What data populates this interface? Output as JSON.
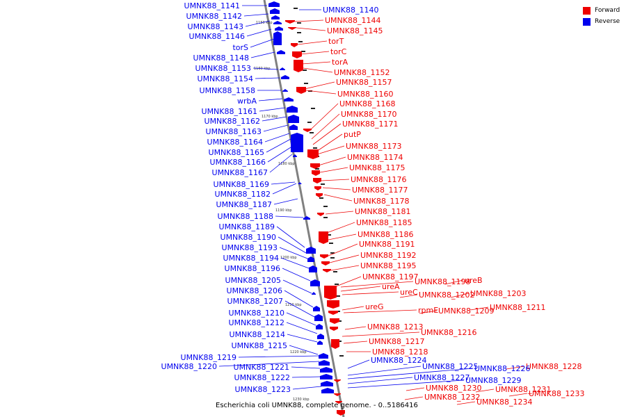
{
  "caption": "Escherichia coli UMNK88, complete genome. - 0..5186416",
  "legend": [
    {
      "label": "Forward",
      "color": "#ee0000"
    },
    {
      "label": "Reverse",
      "color": "#0000ee"
    }
  ],
  "colors": {
    "forward": "#ee0000",
    "reverse": "#0000ee",
    "backbone": "#808080"
  },
  "ticks": [
    "1150 kbp",
    "1160 kbp",
    "1170 kbp",
    "1180 kbp",
    "1190 kbp",
    "1200 kbp",
    "1210 kbp",
    "1220 kbp",
    "1230 kbp"
  ],
  "reverse_labels": [
    "UMNK88_1141",
    "UMNK88_1142",
    "UMNK88_1143",
    "UMNK88_1146",
    "torS",
    "UMNK88_1148",
    "UMNK88_1153",
    "UMNK88_1154",
    "UMNK88_1158",
    "wrbA",
    "UMNK88_1161",
    "UMNK88_1162",
    "UMNK88_1163",
    "UMNK88_1164",
    "UMNK88_1165",
    "UMNK88_1166",
    "UMNK88_1167",
    "UMNK88_1169",
    "UMNK88_1182",
    "UMNK88_1187",
    "UMNK88_1188",
    "UMNK88_1189",
    "UMNK88_1190",
    "UMNK88_1193",
    "UMNK88_1194",
    "UMNK88_1196",
    "UMNK88_1205",
    "UMNK88_1206",
    "UMNK88_1207",
    "UMNK88_1210",
    "UMNK88_1212",
    "UMNK88_1214",
    "UMNK88_1215",
    "UMNK88_1219",
    "UMNK88_1220",
    "UMNK88_1221",
    "UMNK88_1222",
    "UMNK88_1223"
  ],
  "forward_labels": [
    "UMNK88_1144",
    "UMNK88_1145",
    "torT",
    "torC",
    "torA",
    "UMNK88_1152",
    "UMNK88_1157",
    "UMNK88_1160",
    "UMNK88_1168",
    "UMNK88_1170",
    "UMNK88_1171",
    "putP",
    "UMNK88_1173",
    "UMNK88_1174",
    "UMNK88_1175",
    "UMNK88_1176",
    "UMNK88_1177",
    "UMNK88_1178",
    "UMNK88_1181",
    "UMNK88_1185",
    "UMNK88_1186",
    "UMNK88_1191",
    "UMNK88_1192",
    "UMNK88_1195",
    "UMNK88_1197",
    "UMNK88_1198",
    "ureB",
    "ureA",
    "UMNK88_1203",
    "ureC",
    "UMNK88_1202",
    "UMNK88_1211",
    "ureG",
    "rpmE",
    "UMNK88_1209",
    "UMNK88_1213",
    "UMNK88_1216",
    "UMNK88_1217",
    "UMNK88_1218",
    "UMNK88_1228",
    "UMNK88_1233",
    "UMNK88_1231",
    "UMNK88_1230",
    "UMNK88_1232",
    "UMNK88_1234"
  ],
  "reverse_right_labels": [
    "UMNK88_1140",
    "UMNK88_1224",
    "UMNK88_1225",
    "UMNK88_1226",
    "UMNK88_1227",
    "UMNK88_1229"
  ]
}
